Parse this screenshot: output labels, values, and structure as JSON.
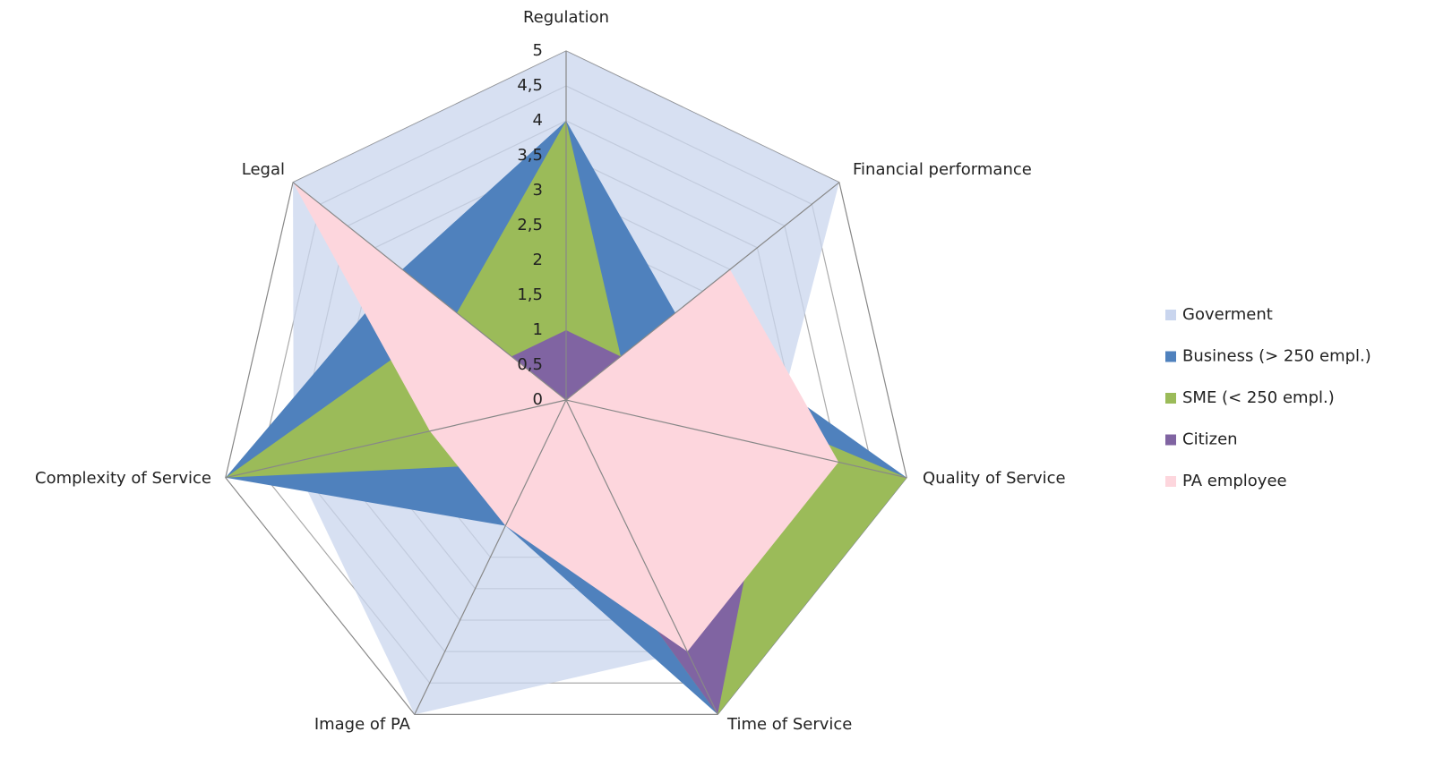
{
  "chart_data": {
    "type": "radar",
    "categories": [
      "Regulation",
      "Financial performance",
      "Quality of Service",
      "Time of Service",
      "Image of PA",
      "Complexity of Service",
      "Legal"
    ],
    "series": [
      {
        "name": "Goverment",
        "color": "#c9d5ee",
        "values": [
          5,
          5,
          3,
          4,
          5,
          4,
          5
        ]
      },
      {
        "name": "Business (> 250 empl.)",
        "color": "#4f81bd",
        "values": [
          4,
          2,
          5,
          5,
          2,
          5,
          3
        ]
      },
      {
        "name": "SME (< 250 empl.)",
        "color": "#9bbb59",
        "values": [
          4,
          1,
          5,
          5,
          1,
          5,
          2
        ]
      },
      {
        "name": "Citizen",
        "color": "#8064a2",
        "values": [
          1,
          1,
          3,
          5,
          1,
          1,
          1
        ]
      },
      {
        "name": "PA employee",
        "color": "#fdd6dd",
        "values": [
          0,
          3,
          4,
          4,
          2,
          2,
          5
        ]
      }
    ],
    "rlim": [
      0,
      5
    ],
    "rticks": [
      0,
      {
        "value": 0.5,
        "label": "0,5"
      },
      1,
      {
        "value": 1.5,
        "label": "1,5"
      },
      2,
      {
        "value": 2.5,
        "label": "2,5"
      },
      3,
      {
        "value": 3.5,
        "label": "3,5"
      },
      4,
      {
        "value": 4.5,
        "label": "4,5"
      },
      5
    ],
    "legend": "right",
    "grid": true
  }
}
